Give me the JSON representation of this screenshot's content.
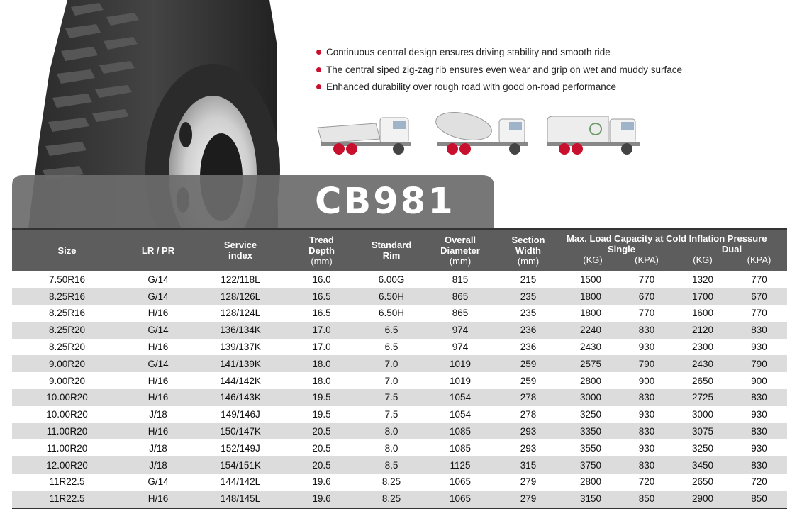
{
  "model": "CB981",
  "features": [
    "Continuous central design ensures driving stability and smooth ride",
    "The central siped zig-zag rib ensures even wear and grip on wet and muddy surface",
    "Enhanced durability over rough road with good on-road performance"
  ],
  "applications": [
    "dump-truck-icon",
    "concrete-mixer-truck-icon",
    "garbage-truck-icon"
  ],
  "colors": {
    "accent": "#c8102e",
    "header_bg": "#5d5d5d",
    "banner_bg": "#6b6b6b",
    "stripe": "#dcdcdc"
  },
  "table": {
    "headers": {
      "size": "Size",
      "lr_pr": "LR / PR",
      "service_index": "Service index",
      "tread_depth": "Tread Depth",
      "tread_depth_unit": "(mm)",
      "standard_rim": "Standard Rim",
      "overall_diameter": "Overall Diameter",
      "overall_diameter_unit": "(mm)",
      "section_width": "Section Width",
      "section_width_unit": "(mm)",
      "load_capacity": "Max. Load Capacity at Cold Inflation Pressure",
      "single": "Single",
      "dual": "Dual",
      "kg": "(KG)",
      "kpa": "(KPA)"
    },
    "rows": [
      [
        "7.50R16",
        "G/14",
        "122/118L",
        "16.0",
        "6.00G",
        "815",
        "215",
        "1500",
        "770",
        "1320",
        "770"
      ],
      [
        "8.25R16",
        "G/14",
        "128/126L",
        "16.5",
        "6.50H",
        "865",
        "235",
        "1800",
        "670",
        "1700",
        "670"
      ],
      [
        "8.25R16",
        "H/16",
        "128/124L",
        "16.5",
        "6.50H",
        "865",
        "235",
        "1800",
        "770",
        "1600",
        "770"
      ],
      [
        "8.25R20",
        "G/14",
        "136/134K",
        "17.0",
        "6.5",
        "974",
        "236",
        "2240",
        "830",
        "2120",
        "830"
      ],
      [
        "8.25R20",
        "H/16",
        "139/137K",
        "17.0",
        "6.5",
        "974",
        "236",
        "2430",
        "930",
        "2300",
        "930"
      ],
      [
        "9.00R20",
        "G/14",
        "141/139K",
        "18.0",
        "7.0",
        "1019",
        "259",
        "2575",
        "790",
        "2430",
        "790"
      ],
      [
        "9.00R20",
        "H/16",
        "144/142K",
        "18.0",
        "7.0",
        "1019",
        "259",
        "2800",
        "900",
        "2650",
        "900"
      ],
      [
        "10.00R20",
        "H/16",
        "146/143K",
        "19.5",
        "7.5",
        "1054",
        "278",
        "3000",
        "830",
        "2725",
        "830"
      ],
      [
        "10.00R20",
        "J/18",
        "149/146J",
        "19.5",
        "7.5",
        "1054",
        "278",
        "3250",
        "930",
        "3000",
        "930"
      ],
      [
        "11.00R20",
        "H/16",
        "150/147K",
        "20.5",
        "8.0",
        "1085",
        "293",
        "3350",
        "830",
        "3075",
        "830"
      ],
      [
        "11.00R20",
        "J/18",
        "152/149J",
        "20.5",
        "8.0",
        "1085",
        "293",
        "3550",
        "930",
        "3250",
        "930"
      ],
      [
        "12.00R20",
        "J/18",
        "154/151K",
        "20.5",
        "8.5",
        "1125",
        "315",
        "3750",
        "830",
        "3450",
        "830"
      ],
      [
        "11R22.5",
        "G/14",
        "144/142L",
        "19.6",
        "8.25",
        "1065",
        "279",
        "2800",
        "720",
        "2650",
        "720"
      ],
      [
        "11R22.5",
        "H/16",
        "148/145L",
        "19.6",
        "8.25",
        "1065",
        "279",
        "3150",
        "850",
        "2900",
        "850"
      ]
    ]
  }
}
